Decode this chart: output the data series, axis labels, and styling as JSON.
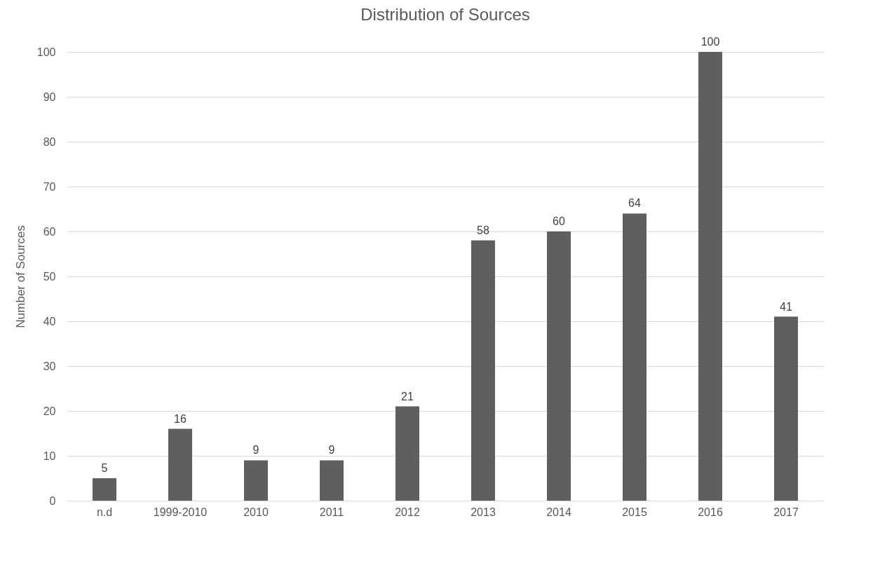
{
  "chart_data": {
    "type": "bar",
    "title": "Distribution of Sources",
    "ylabel": "Number of Sources",
    "categories": [
      "n.d",
      "1999-2010",
      "2010",
      "2011",
      "2012",
      "2013",
      "2014",
      "2015",
      "2016",
      "2017"
    ],
    "values": [
      5,
      16,
      9,
      9,
      21,
      58,
      60,
      64,
      100,
      41
    ],
    "color": "#5f5f5f",
    "ylim": [
      0,
      100
    ],
    "yticks": [
      0,
      10,
      20,
      30,
      40,
      50,
      60,
      70,
      80,
      90,
      100
    ],
    "grid": "y",
    "data_labels": true
  }
}
